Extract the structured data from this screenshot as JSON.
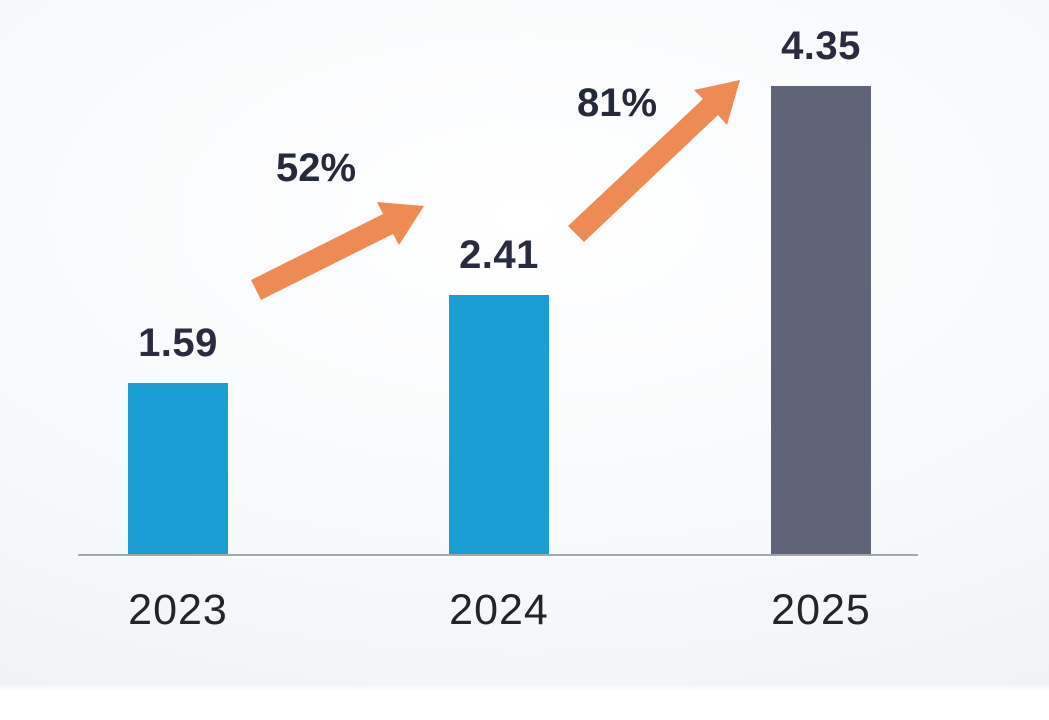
{
  "chart_data": {
    "type": "bar",
    "title": "",
    "xlabel": "",
    "ylabel": "",
    "categories": [
      "2023",
      "2024",
      "2025"
    ],
    "values": [
      1.59,
      2.41,
      4.35
    ],
    "data_labels": [
      "1.59",
      "2.41",
      "4.35"
    ],
    "growth_annotations": [
      {
        "from": "2023",
        "to": "2024",
        "label": "52%"
      },
      {
        "from": "2024",
        "to": "2025",
        "label": "81%"
      }
    ],
    "ylim": [
      0,
      4.35
    ],
    "grid": false,
    "legend": false,
    "bar_colors": [
      "#1A9ED3",
      "#1A9ED3",
      "#5F6478"
    ],
    "arrow_color": "#EE8B55",
    "value_label_color": "#282C3E",
    "year_label_color": "#222428",
    "axis_line_color": "#A2A7AD"
  }
}
